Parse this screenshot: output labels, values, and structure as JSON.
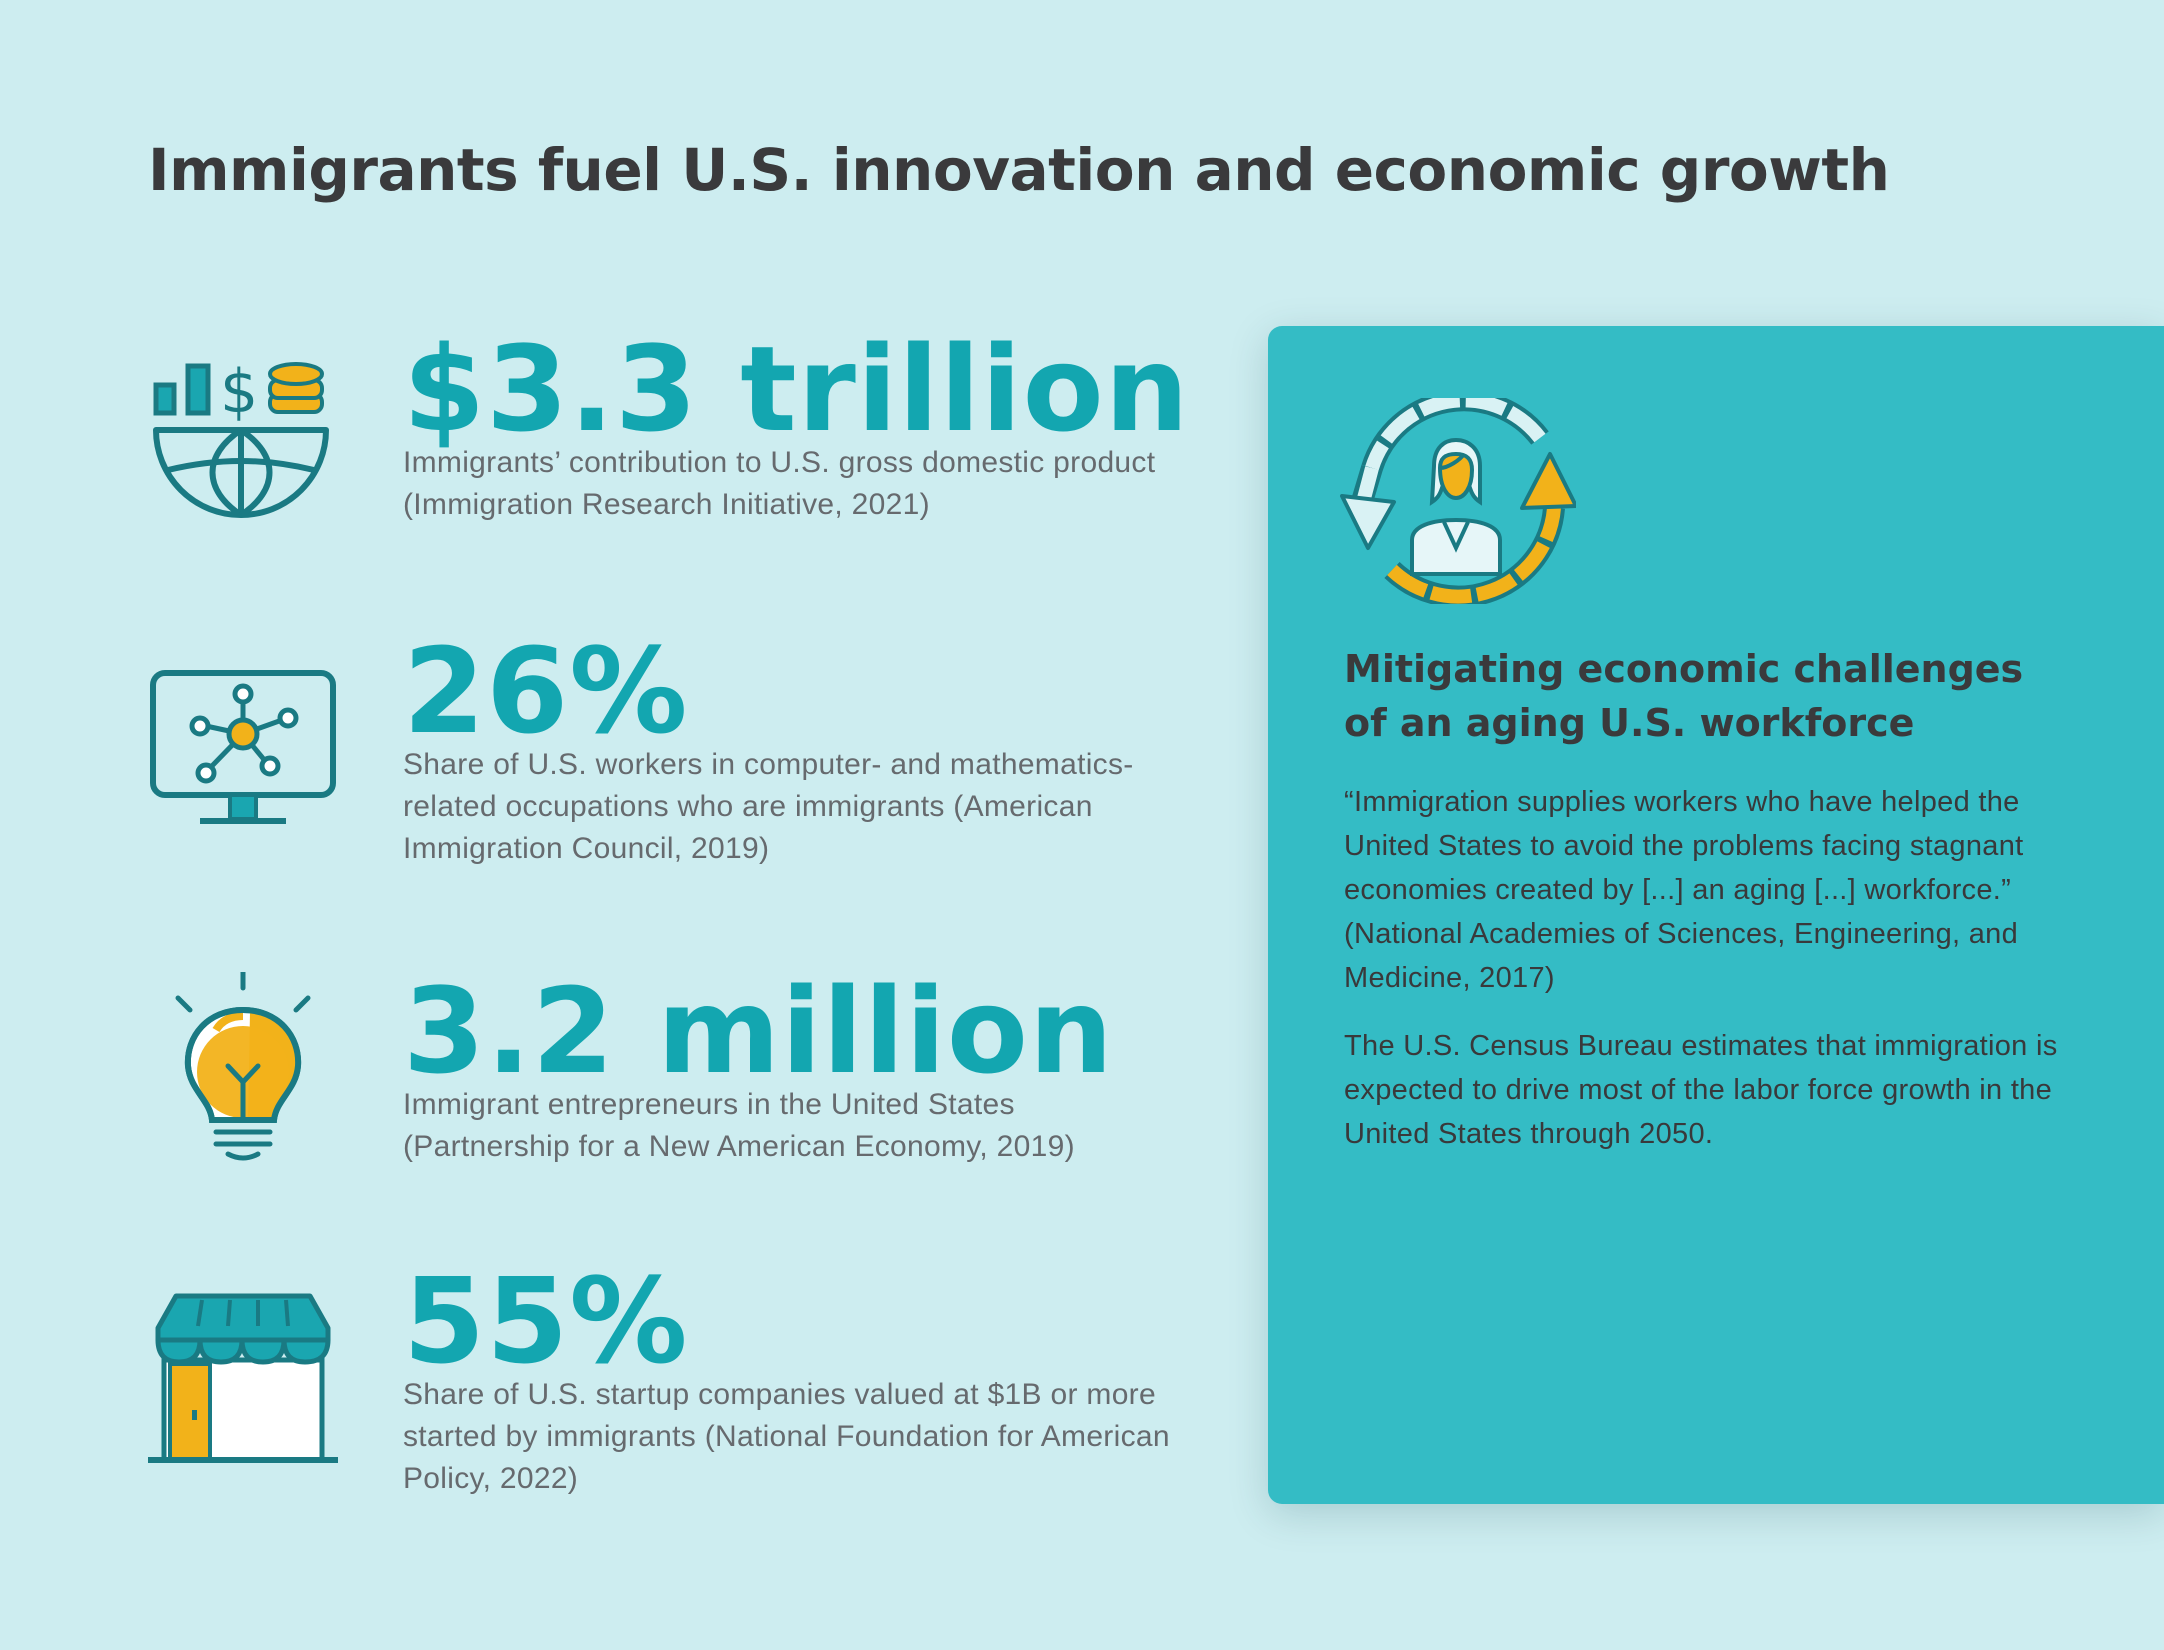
{
  "title": "Immigrants fuel U.S. innovation and economic growth",
  "colors": {
    "background": "#cdedf0",
    "accent_teal": "#13a6b0",
    "panel": "#34bcc5",
    "icon_dark": "#1a7a83",
    "icon_yellow": "#f2b21a",
    "heading": "#3a3a3c"
  },
  "stats": [
    {
      "icon": "globe-chart-money-icon",
      "value": "$3.3 trillion",
      "description": "Immigrants’ contribution to U.S. gross domestic product (Immigration Research Initiative, 2021)"
    },
    {
      "icon": "computer-network-icon",
      "value": "26%",
      "description": "Share of U.S. workers in computer- and mathematics-related occupations who are immigrants (American Immigration Council, 2019)"
    },
    {
      "icon": "lightbulb-icon",
      "value": "3.2 million",
      "description": "Immigrant entrepreneurs in the United States (Partnership for a New American Economy, 2019)"
    },
    {
      "icon": "storefront-icon",
      "value": "55%",
      "description": "Share of U.S. startup companies valued at $1B or more started by immigrants (National Foundation for American Policy, 2022)"
    }
  ],
  "panel": {
    "icon": "worker-cycle-icon",
    "heading": "Mitigating economic challenges of an aging U.S. workforce",
    "quote": "“Immigration supplies workers who have helped the United States to avoid the problems facing stagnant economies created by [...] an aging [...] workforce.” (National Academies of Sciences, Engineering, and Medicine, 2017)",
    "body": "The U.S. Census Bureau estimates that immigration is expected to drive most of the labor force growth in the United States through 2050."
  }
}
